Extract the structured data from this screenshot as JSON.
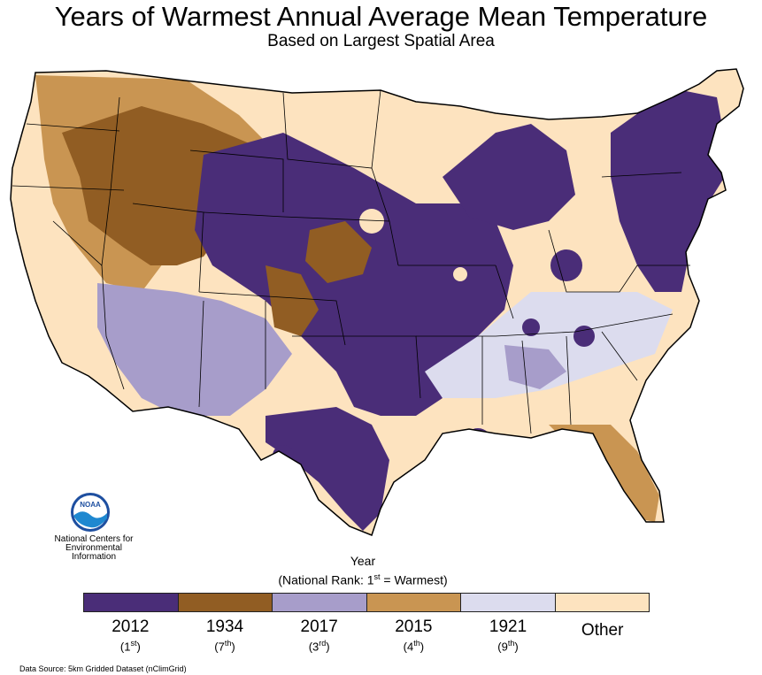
{
  "title": "Years of Warmest Annual Average Mean Temperature",
  "subtitle": "Based on Largest Spatial Area",
  "logo": {
    "acronym": "NOAA",
    "lines": [
      "National Centers for",
      "Environmental",
      "Information"
    ]
  },
  "legend": {
    "title": "Year",
    "subtitle_prefix": "(National Rank: 1",
    "subtitle_sup": "st",
    "subtitle_suffix": " = Warmest)",
    "items": [
      {
        "year": "2012",
        "rank": "1",
        "rank_sup": "st",
        "color": "#4a2d78"
      },
      {
        "year": "1934",
        "rank": "7",
        "rank_sup": "th",
        "color": "#915d23"
      },
      {
        "year": "2017",
        "rank": "3",
        "rank_sup": "rd",
        "color": "#a79dca"
      },
      {
        "year": "2015",
        "rank": "4",
        "rank_sup": "th",
        "color": "#c99552"
      },
      {
        "year": "1921",
        "rank": "9",
        "rank_sup": "th",
        "color": "#dcdcee"
      },
      {
        "year": "Other",
        "rank": "",
        "rank_sup": "",
        "color": "#fde3bf"
      }
    ]
  },
  "source": "Data Source: 5km Gridded Dataset (nClimGrid)"
}
